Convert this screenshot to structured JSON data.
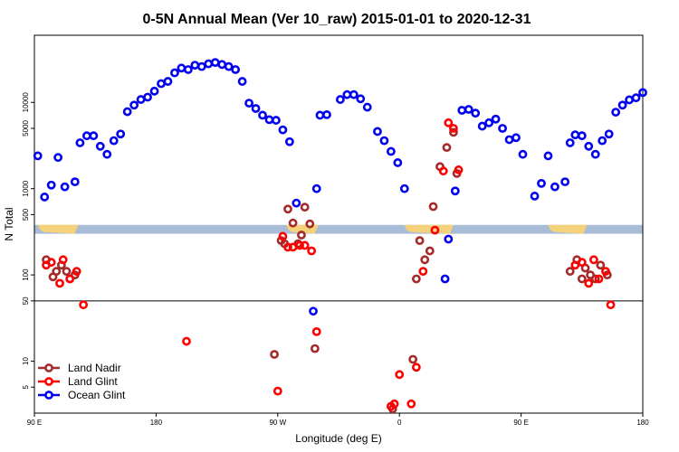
{
  "chart_data": {
    "type": "scatter",
    "title": "0-5N Annual Mean (Ver 10_raw)   2015-01-01 to 2020-12-31",
    "xlabel": "Longitude (deg E)",
    "ylabel": "N Total",
    "xlim": [
      90,
      450
    ],
    "ylog": true,
    "ylim": [
      2.5,
      60000
    ],
    "x_ticks": [
      {
        "value": 90,
        "label": "90 E"
      },
      {
        "value": 162,
        "label": "180"
      },
      {
        "value": 234,
        "label": "90 W"
      },
      {
        "value": 306,
        "label": "0"
      },
      {
        "value": 378,
        "label": "90 E"
      },
      {
        "value": 450,
        "label": "180"
      }
    ],
    "y_ticks": [
      {
        "value": 5,
        "label": "5"
      },
      {
        "value": 10,
        "label": "10"
      },
      {
        "value": 50,
        "label": "50"
      },
      {
        "value": 100,
        "label": "100"
      },
      {
        "value": 500,
        "label": "500"
      },
      {
        "value": 1000,
        "label": "1000"
      },
      {
        "value": 5000,
        "label": "5000"
      },
      {
        "value": 10000,
        "label": "10000"
      }
    ],
    "hline": 50,
    "legend_position": "bottom-left",
    "series": [
      {
        "name": "Land Nadir",
        "color": "#a52a2a",
        "points": [
          [
            97,
            150
          ],
          [
            101,
            95
          ],
          [
            103,
            110
          ],
          [
            106,
            130
          ],
          [
            109,
            110
          ],
          [
            111,
            90
          ],
          [
            114,
            100
          ],
          [
            163,
            null
          ],
          [
            232,
            12
          ],
          [
            236,
            250
          ],
          [
            238,
            230
          ],
          [
            240,
            580
          ],
          [
            243,
            400
          ],
          [
            246,
            230
          ],
          [
            248,
            290
          ],
          [
            250,
            610
          ],
          [
            253,
            390
          ],
          [
            256,
            14
          ],
          [
            302,
            2.8
          ],
          [
            314,
            10.5
          ],
          [
            316,
            90
          ],
          [
            318,
            250
          ],
          [
            321,
            150
          ],
          [
            324,
            190
          ],
          [
            326,
            620
          ],
          [
            330,
            1800
          ],
          [
            334,
            3000
          ],
          [
            338,
            4500
          ],
          [
            340,
            1500
          ],
          [
            407,
            110
          ],
          [
            411,
            150
          ],
          [
            414,
            90
          ],
          [
            416,
            120
          ],
          [
            419,
            100
          ],
          [
            422,
            90
          ],
          [
            425,
            130
          ],
          [
            429,
            100
          ]
        ]
      },
      {
        "name": "Land Glint",
        "color": "#ff0000",
        "points": [
          [
            97,
            130
          ],
          [
            100,
            140
          ],
          [
            105,
            80
          ],
          [
            107,
            150
          ],
          [
            111,
            90
          ],
          [
            115,
            110
          ],
          [
            119,
            45
          ],
          [
            180,
            17
          ],
          [
            234,
            4.5
          ],
          [
            237,
            280
          ],
          [
            240,
            210
          ],
          [
            243,
            210
          ],
          [
            247,
            220
          ],
          [
            250,
            220
          ],
          [
            254,
            190
          ],
          [
            257,
            22
          ],
          [
            301,
            3
          ],
          [
            303,
            3.2
          ],
          [
            306,
            7
          ],
          [
            313,
            3.2
          ],
          [
            316,
            8.5
          ],
          [
            320,
            110
          ],
          [
            327,
            330
          ],
          [
            332,
            1600
          ],
          [
            335,
            5800
          ],
          [
            338,
            5000
          ],
          [
            341,
            1650
          ],
          [
            410,
            130
          ],
          [
            414,
            140
          ],
          [
            418,
            80
          ],
          [
            421,
            150
          ],
          [
            424,
            90
          ],
          [
            428,
            110
          ],
          [
            431,
            45
          ]
        ]
      },
      {
        "name": "Ocean Glint",
        "color": "#0000ee",
        "points": [
          [
            92,
            2400
          ],
          [
            96,
            800
          ],
          [
            100,
            1100
          ],
          [
            104,
            2300
          ],
          [
            108,
            1050
          ],
          [
            114,
            1200
          ],
          [
            117,
            3400
          ],
          [
            121,
            4100
          ],
          [
            125,
            4100
          ],
          [
            129,
            3100
          ],
          [
            133,
            2500
          ],
          [
            137,
            3600
          ],
          [
            141,
            4300
          ],
          [
            145,
            7800
          ],
          [
            149,
            9300
          ],
          [
            153,
            10800
          ],
          [
            157,
            11500
          ],
          [
            161,
            13500
          ],
          [
            165,
            16500
          ],
          [
            169,
            17500
          ],
          [
            173,
            22000
          ],
          [
            177,
            25000
          ],
          [
            181,
            24000
          ],
          [
            185,
            27000
          ],
          [
            189,
            26000
          ],
          [
            193,
            28000
          ],
          [
            197,
            29000
          ],
          [
            201,
            27500
          ],
          [
            205,
            26000
          ],
          [
            209,
            24000
          ],
          [
            213,
            17500
          ],
          [
            217,
            9800
          ],
          [
            221,
            8500
          ],
          [
            225,
            7100
          ],
          [
            229,
            6300
          ],
          [
            233,
            6200
          ],
          [
            237,
            4800
          ],
          [
            241,
            3500
          ],
          [
            245,
            680
          ],
          [
            255,
            38
          ],
          [
            257,
            1000
          ],
          [
            259,
            7100
          ],
          [
            263,
            7200
          ],
          [
            271,
            10800
          ],
          [
            275,
            12300
          ],
          [
            279,
            12300
          ],
          [
            283,
            11000
          ],
          [
            287,
            8800
          ],
          [
            293,
            4600
          ],
          [
            297,
            3600
          ],
          [
            301,
            2700
          ],
          [
            305,
            2000
          ],
          [
            309,
            1000
          ],
          [
            333,
            90
          ],
          [
            335,
            260
          ],
          [
            339,
            940
          ],
          [
            343,
            8100
          ],
          [
            347,
            8300
          ],
          [
            351,
            7500
          ],
          [
            355,
            5300
          ],
          [
            359,
            5800
          ],
          [
            363,
            6400
          ],
          [
            367,
            5000
          ],
          [
            371,
            3700
          ],
          [
            375,
            3900
          ],
          [
            379,
            2500
          ],
          [
            386,
            820
          ],
          [
            390,
            1150
          ],
          [
            394,
            2400
          ],
          [
            398,
            1050
          ],
          [
            404,
            1200
          ],
          [
            407,
            3400
          ],
          [
            410,
            4200
          ],
          [
            414,
            4100
          ],
          [
            418,
            3100
          ],
          [
            422,
            2500
          ],
          [
            426,
            3600
          ],
          [
            430,
            4300
          ],
          [
            434,
            7700
          ],
          [
            438,
            9300
          ],
          [
            442,
            10700
          ],
          [
            446,
            11300
          ],
          [
            450,
            13000
          ]
        ]
      }
    ],
    "map_strip": {
      "color": "#a8bcd8",
      "land_color": "#f4d27a",
      "y_range": [
        300,
        380
      ]
    }
  }
}
